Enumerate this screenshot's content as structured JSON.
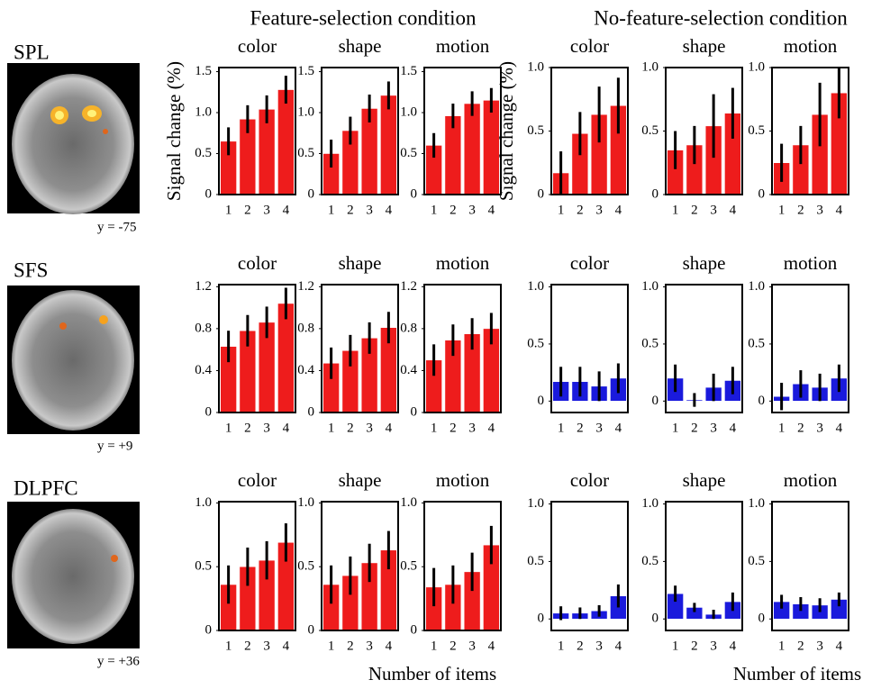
{
  "conditions": [
    "Feature-selection condition",
    "No-feature-selection condition"
  ],
  "x_axis_label": "Number of items",
  "regions": [
    {
      "name": "SPL",
      "coord": "y = -75"
    },
    {
      "name": "SFS",
      "coord": "y = +9"
    },
    {
      "name": "DLPFC",
      "coord": "y = +36"
    }
  ],
  "chart_data": [
    {
      "type": "bar",
      "title": "color",
      "ylabel": "Signal change (%)",
      "categories": [
        "1",
        "2",
        "3",
        "4"
      ],
      "values": [
        0.65,
        0.92,
        1.04,
        1.28
      ],
      "errors": [
        0.17,
        0.17,
        0.17,
        0.17
      ],
      "color": "#ee1c1c",
      "ylim": [
        0,
        1.55
      ],
      "yticks": [
        0,
        0.5,
        {
          "value": 1,
          "label": "1.0"
        },
        1.5
      ]
    },
    {
      "type": "bar",
      "title": "shape",
      "categories": [
        "1",
        "2",
        "3",
        "4"
      ],
      "values": [
        0.5,
        0.78,
        1.05,
        1.21
      ],
      "errors": [
        0.17,
        0.17,
        0.17,
        0.17
      ],
      "color": "#ee1c1c",
      "ylim": [
        0,
        1.55
      ],
      "yticks": [
        0,
        0.5,
        {
          "value": 1,
          "label": "1.0"
        },
        1.5
      ]
    },
    {
      "type": "bar",
      "title": "motion",
      "categories": [
        "1",
        "2",
        "3",
        "4"
      ],
      "values": [
        0.6,
        0.96,
        1.11,
        1.15
      ],
      "errors": [
        0.15,
        0.15,
        0.15,
        0.15
      ],
      "color": "#ee1c1c",
      "ylim": [
        0,
        1.55
      ],
      "yticks": [
        0,
        0.5,
        {
          "value": 1,
          "label": "1.0"
        },
        1.5
      ]
    },
    {
      "type": "bar",
      "title": "color",
      "ylabel": "Signal change (%)",
      "categories": [
        "1",
        "2",
        "3",
        "4"
      ],
      "values": [
        0.17,
        0.48,
        0.63,
        0.7
      ],
      "errors": [
        0.17,
        0.17,
        0.22,
        0.22
      ],
      "color": "#ee1c1c",
      "ylim": [
        0,
        1.0
      ],
      "yticks": [
        0,
        0.5,
        {
          "value": 1,
          "label": "1.0"
        }
      ]
    },
    {
      "type": "bar",
      "title": "shape",
      "categories": [
        "1",
        "2",
        "3",
        "4"
      ],
      "values": [
        0.35,
        0.39,
        0.54,
        0.64
      ],
      "errors": [
        0.15,
        0.15,
        0.25,
        0.2
      ],
      "color": "#ee1c1c",
      "ylim": [
        0,
        1.0
      ],
      "yticks": [
        0,
        0.5,
        {
          "value": 1,
          "label": "1.0"
        }
      ]
    },
    {
      "type": "bar",
      "title": "motion",
      "categories": [
        "1",
        "2",
        "3",
        "4"
      ],
      "values": [
        0.25,
        0.39,
        0.63,
        0.8
      ],
      "errors": [
        0.15,
        0.15,
        0.25,
        0.2
      ],
      "color": "#ee1c1c",
      "ylim": [
        0,
        1.0
      ],
      "yticks": [
        0,
        0.5,
        {
          "value": 1,
          "label": "1.0"
        }
      ]
    },
    {
      "type": "bar",
      "title": "color",
      "categories": [
        "1",
        "2",
        "3",
        "4"
      ],
      "values": [
        0.63,
        0.78,
        0.86,
        1.04
      ],
      "errors": [
        0.15,
        0.15,
        0.15,
        0.15
      ],
      "color": "#ee1c1c",
      "ylim": [
        0,
        1.22
      ],
      "yticks": [
        0,
        0.4,
        0.8,
        1.2
      ]
    },
    {
      "type": "bar",
      "title": "shape",
      "categories": [
        "1",
        "2",
        "3",
        "4"
      ],
      "values": [
        0.47,
        0.59,
        0.71,
        0.81
      ],
      "errors": [
        0.15,
        0.15,
        0.15,
        0.15
      ],
      "color": "#ee1c1c",
      "ylim": [
        0,
        1.22
      ],
      "yticks": [
        0,
        0.4,
        0.8,
        1.2
      ]
    },
    {
      "type": "bar",
      "title": "motion",
      "categories": [
        "1",
        "2",
        "3",
        "4"
      ],
      "values": [
        0.5,
        0.69,
        0.75,
        0.8
      ],
      "errors": [
        0.15,
        0.15,
        0.15,
        0.15
      ],
      "color": "#ee1c1c",
      "ylim": [
        0,
        1.22
      ],
      "yticks": [
        0,
        0.4,
        0.8,
        1.2
      ]
    },
    {
      "type": "bar",
      "title": "color",
      "categories": [
        "1",
        "2",
        "3",
        "4"
      ],
      "values": [
        0.17,
        0.17,
        0.13,
        0.2
      ],
      "errors": [
        0.13,
        0.13,
        0.13,
        0.13
      ],
      "color": "#1a1adc",
      "ylim": [
        -0.1,
        1.02
      ],
      "yticks": [
        0,
        0.5,
        {
          "value": 1,
          "label": "1.0"
        }
      ]
    },
    {
      "type": "bar",
      "title": "shape",
      "categories": [
        "1",
        "2",
        "3",
        "4"
      ],
      "values": [
        0.2,
        0.01,
        0.12,
        0.18
      ],
      "errors": [
        0.12,
        0.06,
        0.12,
        0.12
      ],
      "color": "#1a1adc",
      "ylim": [
        -0.1,
        1.02
      ],
      "yticks": [
        0,
        0.5,
        {
          "value": 1,
          "label": "1.0"
        }
      ]
    },
    {
      "type": "bar",
      "title": "motion",
      "categories": [
        "1",
        "2",
        "3",
        "4"
      ],
      "values": [
        0.04,
        0.15,
        0.12,
        0.2
      ],
      "errors": [
        0.12,
        0.12,
        0.12,
        0.12
      ],
      "color": "#1a1adc",
      "ylim": [
        -0.1,
        1.02
      ],
      "yticks": [
        0,
        0.5,
        {
          "value": 1,
          "label": "1.0"
        }
      ]
    },
    {
      "type": "bar",
      "title": "color",
      "categories": [
        "1",
        "2",
        "3",
        "4"
      ],
      "values": [
        0.36,
        0.5,
        0.55,
        0.69
      ],
      "errors": [
        0.15,
        0.15,
        0.15,
        0.15
      ],
      "color": "#ee1c1c",
      "ylim": [
        0,
        1.01
      ],
      "yticks": [
        0,
        0.5,
        {
          "value": 1,
          "label": "1.0"
        }
      ]
    },
    {
      "type": "bar",
      "title": "shape",
      "categories": [
        "1",
        "2",
        "3",
        "4"
      ],
      "values": [
        0.36,
        0.43,
        0.53,
        0.63
      ],
      "errors": [
        0.15,
        0.15,
        0.15,
        0.15
      ],
      "color": "#ee1c1c",
      "ylim": [
        0,
        1.01
      ],
      "yticks": [
        0,
        0.5,
        {
          "value": 1,
          "label": "1.0"
        }
      ]
    },
    {
      "type": "bar",
      "title": "motion",
      "categories": [
        "1",
        "2",
        "3",
        "4"
      ],
      "values": [
        0.34,
        0.36,
        0.46,
        0.67
      ],
      "errors": [
        0.15,
        0.15,
        0.15,
        0.15
      ],
      "color": "#ee1c1c",
      "ylim": [
        0,
        1.01
      ],
      "yticks": [
        0,
        0.5,
        {
          "value": 1,
          "label": "1.0"
        }
      ]
    },
    {
      "type": "bar",
      "title": "color",
      "categories": [
        "1",
        "2",
        "3",
        "4"
      ],
      "values": [
        0.05,
        0.05,
        0.07,
        0.2
      ],
      "errors": [
        0.06,
        0.05,
        0.05,
        0.1
      ],
      "color": "#1a1adc",
      "ylim": [
        -0.1,
        1.02
      ],
      "yticks": [
        0,
        0.5,
        {
          "value": 1,
          "label": "1.0"
        }
      ]
    },
    {
      "type": "bar",
      "title": "shape",
      "categories": [
        "1",
        "2",
        "3",
        "4"
      ],
      "values": [
        0.22,
        0.1,
        0.04,
        0.15
      ],
      "errors": [
        0.07,
        0.04,
        0.04,
        0.08
      ],
      "color": "#1a1adc",
      "ylim": [
        -0.1,
        1.02
      ],
      "yticks": [
        0,
        0.5,
        {
          "value": 1,
          "label": "1.0"
        }
      ]
    },
    {
      "type": "bar",
      "title": "motion",
      "categories": [
        "1",
        "2",
        "3",
        "4"
      ],
      "values": [
        0.15,
        0.13,
        0.12,
        0.17
      ],
      "errors": [
        0.06,
        0.06,
        0.06,
        0.06
      ],
      "color": "#1a1adc",
      "ylim": [
        -0.1,
        1.02
      ],
      "yticks": [
        0,
        0.5,
        {
          "value": 1,
          "label": "1.0"
        }
      ]
    }
  ]
}
